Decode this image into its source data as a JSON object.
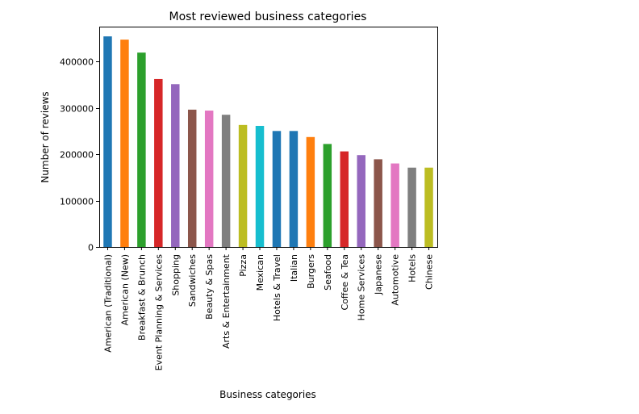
{
  "chart_data": {
    "type": "bar",
    "title": "Most reviewed business categories",
    "xlabel": "Business categories",
    "ylabel": "Number of reviews",
    "ylim": [
      0,
      475000
    ],
    "yticks": [
      0,
      100000,
      200000,
      300000,
      400000
    ],
    "ytick_labels": [
      "0",
      "100000",
      "200000",
      "300000",
      "400000"
    ],
    "grid": false,
    "categories": [
      "American (Traditional)",
      "American (New)",
      "Breakfast & Brunch",
      "Event Planning & Services",
      "Shopping",
      "Sandwiches",
      "Beauty & Spas",
      "Arts & Entertainment",
      "Pizza",
      "Mexican",
      "Hotels & Travel",
      "Italian",
      "Burgers",
      "Seafood",
      "Coffee & Tea",
      "Home Services",
      "Japanese",
      "Automotive",
      "Hotels",
      "Chinese"
    ],
    "values": [
      454000,
      447000,
      419000,
      362000,
      351000,
      296000,
      294000,
      285000,
      263000,
      261000,
      250000,
      250000,
      237000,
      222000,
      206000,
      198000,
      189000,
      180000,
      171000,
      171000
    ],
    "colors": [
      "#1f77b4",
      "#ff7f0e",
      "#2ca02c",
      "#d62728",
      "#9467bd",
      "#8c564b",
      "#e377c2",
      "#7f7f7f",
      "#bcbd22",
      "#17becf",
      "#1f77b4",
      "#1f77b4",
      "#ff7f0e",
      "#2ca02c",
      "#d62728",
      "#9467bd",
      "#8c564b",
      "#e377c2",
      "#7f7f7f",
      "#bcbd22"
    ]
  }
}
